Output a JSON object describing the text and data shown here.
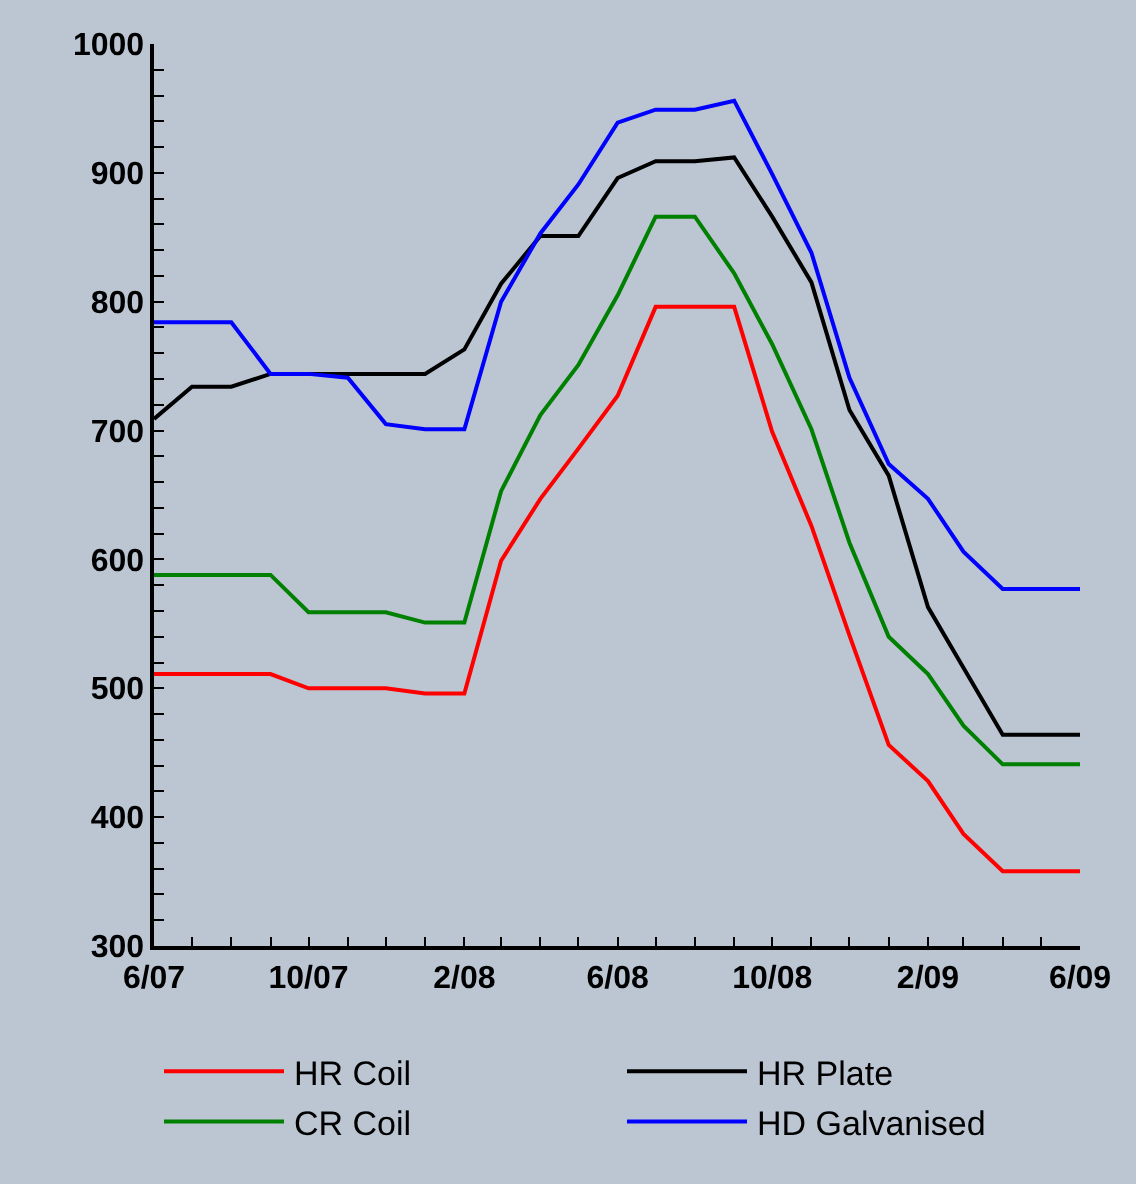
{
  "chart_data": {
    "type": "line",
    "x": [
      "2007-06",
      "2007-07",
      "2007-08",
      "2007-09",
      "2007-10",
      "2007-11",
      "2007-12",
      "2008-01",
      "2008-02",
      "2008-03",
      "2008-04",
      "2008-05",
      "2008-06",
      "2008-07",
      "2008-08",
      "2008-09",
      "2008-10",
      "2008-11",
      "2008-12",
      "2009-01",
      "2009-02",
      "2009-03",
      "2009-04",
      "2009-05",
      "2009-06"
    ],
    "series": [
      {
        "name": "HR Coil",
        "color": "#ff0000",
        "values": [
          511,
          511,
          511,
          511,
          500,
          500,
          500,
          496,
          496,
          599,
          647,
          686,
          727,
          796,
          796,
          796,
          699,
          626,
          541,
          456,
          428,
          387,
          358,
          358,
          358
        ]
      },
      {
        "name": "HR Plate",
        "color": "#000000",
        "values": [
          709,
          734,
          734,
          744,
          744,
          744,
          744,
          744,
          763,
          814,
          851,
          851,
          896,
          909,
          909,
          912,
          866,
          815,
          716,
          665,
          563,
          516,
          464,
          464,
          464
        ]
      },
      {
        "name": "CR Coil",
        "color": "#008000",
        "values": [
          588,
          588,
          588,
          588,
          559,
          559,
          559,
          551,
          551,
          653,
          712,
          751,
          805,
          866,
          866,
          822,
          767,
          701,
          613,
          540,
          511,
          471,
          441,
          441,
          441
        ]
      },
      {
        "name": "HD Galvanised",
        "color": "#0000ff",
        "values": [
          784,
          784,
          784,
          744,
          744,
          741,
          705,
          701,
          701,
          800,
          853,
          891,
          939,
          949,
          949,
          956,
          899,
          838,
          741,
          674,
          647,
          606,
          577,
          577,
          577
        ]
      }
    ],
    "xlim": [
      "2007-06",
      "2009-06"
    ],
    "xticks": [
      {
        "value": "2007-06",
        "label": "6/07"
      },
      {
        "value": "2007-07",
        "label": null
      },
      {
        "value": "2007-08",
        "label": null
      },
      {
        "value": "2007-09",
        "label": null
      },
      {
        "value": "2007-10",
        "label": "10/07"
      },
      {
        "value": "2007-11",
        "label": null
      },
      {
        "value": "2007-12",
        "label": null
      },
      {
        "value": "2008-01",
        "label": null
      },
      {
        "value": "2008-02",
        "label": "2/08"
      },
      {
        "value": "2008-03",
        "label": null
      },
      {
        "value": "2008-04",
        "label": null
      },
      {
        "value": "2008-05",
        "label": null
      },
      {
        "value": "2008-06",
        "label": "6/08"
      },
      {
        "value": "2008-07",
        "label": null
      },
      {
        "value": "2008-08",
        "label": null
      },
      {
        "value": "2008-09",
        "label": null
      },
      {
        "value": "2008-10",
        "label": "10/08"
      },
      {
        "value": "2008-11",
        "label": null
      },
      {
        "value": "2008-12",
        "label": null
      },
      {
        "value": "2009-01",
        "label": null
      },
      {
        "value": "2009-02",
        "label": "2/09"
      },
      {
        "value": "2009-03",
        "label": null
      },
      {
        "value": "2009-04",
        "label": null
      },
      {
        "value": "2009-05",
        "label": null
      },
      {
        "value": "2009-06",
        "label": "6/09"
      }
    ],
    "ylim": [
      300,
      1000
    ],
    "yticks": [
      300,
      {
        "value": 320,
        "label": null
      },
      {
        "value": 340,
        "label": null
      },
      {
        "value": 360,
        "label": null
      },
      {
        "value": 380,
        "label": null
      },
      400,
      {
        "value": 420,
        "label": null
      },
      {
        "value": 440,
        "label": null
      },
      {
        "value": 460,
        "label": null
      },
      {
        "value": 480,
        "label": null
      },
      500,
      {
        "value": 520,
        "label": null
      },
      {
        "value": 540,
        "label": null
      },
      {
        "value": 560,
        "label": null
      },
      {
        "value": 580,
        "label": null
      },
      600,
      {
        "value": 620,
        "label": null
      },
      {
        "value": 640,
        "label": null
      },
      {
        "value": 660,
        "label": null
      },
      {
        "value": 680,
        "label": null
      },
      700,
      {
        "value": 720,
        "label": null
      },
      {
        "value": 740,
        "label": null
      },
      {
        "value": 760,
        "label": null
      },
      {
        "value": 780,
        "label": null
      },
      800,
      {
        "value": 820,
        "label": null
      },
      {
        "value": 840,
        "label": null
      },
      {
        "value": 860,
        "label": null
      },
      {
        "value": 880,
        "label": null
      },
      900,
      {
        "value": 920,
        "label": null
      },
      {
        "value": 940,
        "label": null
      },
      {
        "value": 960,
        "label": null
      },
      {
        "value": 980,
        "label": null
      },
      1000
    ],
    "grid": false,
    "legend": "bottom",
    "marker": "none",
    "line_style": "solid"
  }
}
